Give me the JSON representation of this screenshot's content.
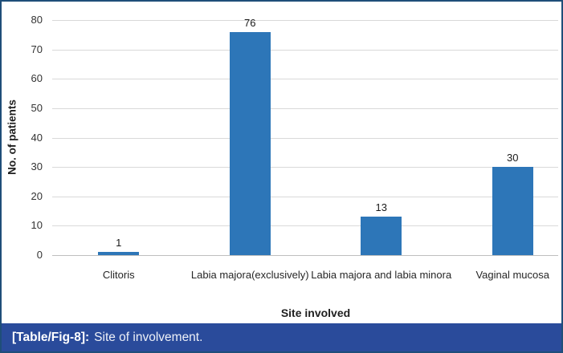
{
  "chart_data": {
    "type": "bar",
    "title": "",
    "categories": [
      "Clitoris",
      "Labia majora(exclusively)",
      "Labia majora and labia minora",
      "Vaginal mucosa"
    ],
    "values": [
      1,
      76,
      13,
      30
    ],
    "data_labels": [
      "1",
      "76",
      "13",
      "30"
    ],
    "xlabel": "Site involved",
    "ylabel": "No. of patients",
    "ylim": [
      0,
      80
    ],
    "ytick_step": 10,
    "grid": "horizontal",
    "legend": "none",
    "bar_color": "#2D76B8"
  },
  "caption": {
    "tag": "[Table/Fig-8]:",
    "text": "Site of involvement."
  },
  "colors": {
    "caption_bg": "#2A4B9B",
    "border": "#1F4E79",
    "gridline": "#D9D9D9",
    "axis_line": "#BFBFBF",
    "tick_text": "#333333"
  }
}
